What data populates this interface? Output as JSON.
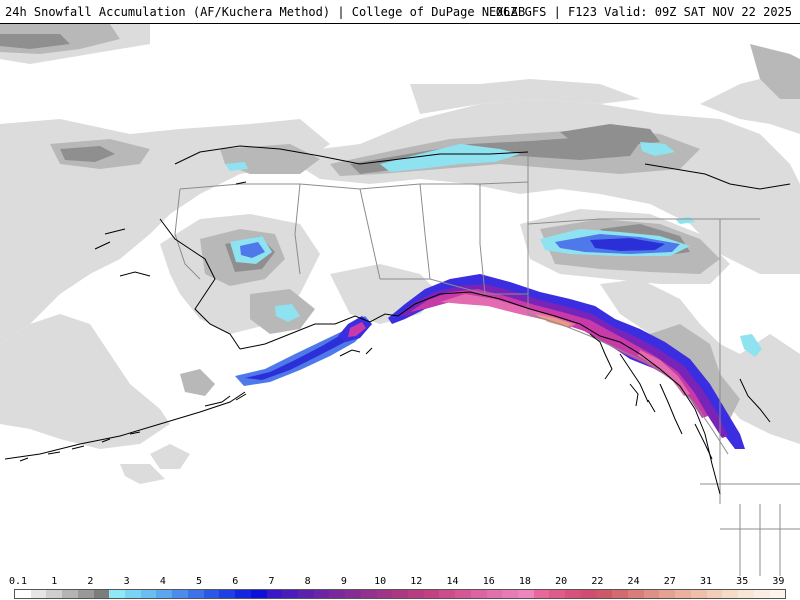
{
  "header": {
    "title_left": "24h Snowfall Accumulation (AF/Kuchera Method) | College of DuPage NEXLAB",
    "title_right": "06Z GFS | F123 Valid: 09Z SAT NOV 22 2025"
  },
  "map": {
    "region": "Alaska",
    "colors": {
      "land": "#ffffff",
      "border": "#8c8c8c",
      "coast": "#000000",
      "gray_light": "#dcdcdc",
      "gray_mid": "#b8b8b8",
      "gray_dark": "#8f8f8f",
      "blue_light": "#8fe3f0",
      "blue_mid": "#5a8ff0",
      "blue_dark": "#2a2fd8",
      "purple": "#7a23b8",
      "magenta": "#c83aa8",
      "pink": "#e36bb0",
      "salmon": "#e89a84"
    }
  },
  "legend": {
    "labels": [
      "0.1",
      "1",
      "2",
      "3",
      "4",
      "5",
      "6",
      "7",
      "8",
      "9",
      "10",
      "12",
      "14",
      "16",
      "18",
      "20",
      "22",
      "24",
      "27",
      "31",
      "35",
      "39"
    ],
    "colors": [
      "#ffffff",
      "#e6e6e6",
      "#cfcfcf",
      "#b4b4b4",
      "#999999",
      "#7d7d7d",
      "#8fe8f5",
      "#7ad3f2",
      "#6bbef0",
      "#5ca6ee",
      "#4d8cec",
      "#3d72ea",
      "#2d58e6",
      "#1f3fe2",
      "#1325de",
      "#0c10d8",
      "#3a18c8",
      "#4a1cbc",
      "#5b20b0",
      "#6b24a6",
      "#7a289c",
      "#872c94",
      "#94308e",
      "#a03488",
      "#ac3884",
      "#b83c82",
      "#c44082",
      "#cc4c8c",
      "#d45896",
      "#dc64a2",
      "#e270ae",
      "#e87ab8",
      "#ec86bc",
      "#e8689c",
      "#e05a8a",
      "#d8507c",
      "#d04c70",
      "#cc5868",
      "#d26a70",
      "#d87e7a",
      "#de9084",
      "#e4a290",
      "#eab29c",
      "#eec0aa",
      "#f2ceb8",
      "#f6dcc8",
      "#f8e6d6",
      "#faeee4",
      "#fcf4ee"
    ]
  }
}
